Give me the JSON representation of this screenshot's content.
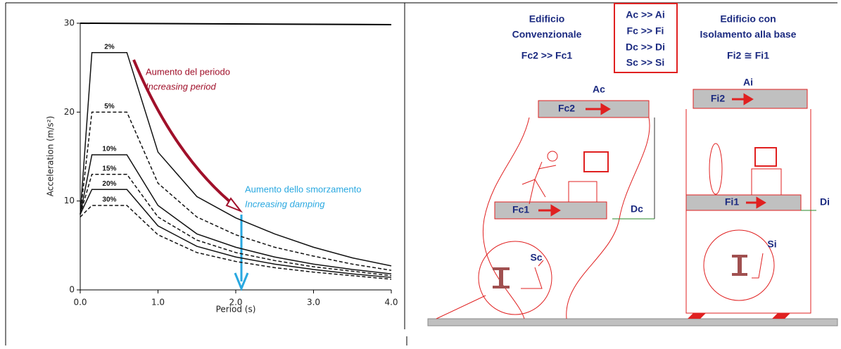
{
  "chart_data": {
    "type": "line",
    "x_label": "Period (s)",
    "y_label": "Acceleration (m/s²)",
    "x": [
      0,
      0.15,
      0.6,
      1.0,
      1.5,
      2.0,
      2.5,
      3.0,
      3.5,
      4.0
    ],
    "series": [
      {
        "name": "2%",
        "color": "#111111",
        "style": "solid",
        "values": [
          8.5,
          26.7,
          26.7,
          15.5,
          10.5,
          8.1,
          6.3,
          4.8,
          3.6,
          2.7
        ]
      },
      {
        "name": "5%",
        "color": "#111111",
        "style": "dashed",
        "values": [
          8.5,
          20,
          20,
          12,
          8.2,
          6.2,
          4.8,
          3.8,
          2.9,
          2.2
        ]
      },
      {
        "name": "10%",
        "color": "#111111",
        "style": "solid",
        "values": [
          8.5,
          15.2,
          15.2,
          9.5,
          6.3,
          4.8,
          3.7,
          2.9,
          2.3,
          1.8
        ]
      },
      {
        "name": "15%",
        "color": "#111111",
        "style": "dashed",
        "values": [
          8.5,
          13,
          13,
          8.2,
          5.6,
          4.2,
          3.3,
          2.6,
          2.1,
          1.6
        ]
      },
      {
        "name": "20%",
        "color": "#111111",
        "style": "solid",
        "values": [
          8.5,
          11.3,
          11.3,
          7.2,
          4.9,
          3.7,
          2.9,
          2.3,
          1.8,
          1.4
        ]
      },
      {
        "name": "30%",
        "color": "#111111",
        "style": "dashed",
        "values": [
          8.2,
          9.5,
          9.5,
          6.2,
          4.2,
          3.2,
          2.5,
          2.0,
          1.6,
          1.2
        ]
      }
    ],
    "xlim": [
      0,
      4
    ],
    "ylim": [
      0,
      30
    ],
    "xticks": [
      {
        "value": 0,
        "label": "0.0"
      },
      {
        "value": 1,
        "label": "1.0"
      },
      {
        "value": 2,
        "label": "2.0"
      },
      {
        "value": 3,
        "label": "3.0"
      },
      {
        "value": 4,
        "label": "4.0"
      }
    ],
    "yticks": [
      0,
      10,
      20,
      30
    ],
    "annotations": {
      "period": [
        "Aumento del periodo",
        "Increasing period"
      ],
      "damping": [
        "Aumento dello smorzamento",
        "Increasing damping"
      ]
    }
  },
  "diagram": {
    "conventional": {
      "title": [
        "Edificio",
        "Convenzionale"
      ],
      "relation": "Fc2 >> Fc1",
      "acc": "Ac",
      "top_force": "Fc2",
      "floor_force": "Fc1",
      "drift": "Dc",
      "strain": "Sc"
    },
    "comparison": [
      "Ac >> Ai",
      "Fc >> Fi",
      "Dc >> Di",
      "Sc >> Si"
    ],
    "isolated": {
      "title": [
        "Edificio con",
        "Isolamento alla base"
      ],
      "relation": "Fi2 ≅ Fi1",
      "acc": "Ai",
      "top_force": "Fi2",
      "floor_force": "Fi1",
      "drift": "Di",
      "strain": "Si"
    }
  }
}
